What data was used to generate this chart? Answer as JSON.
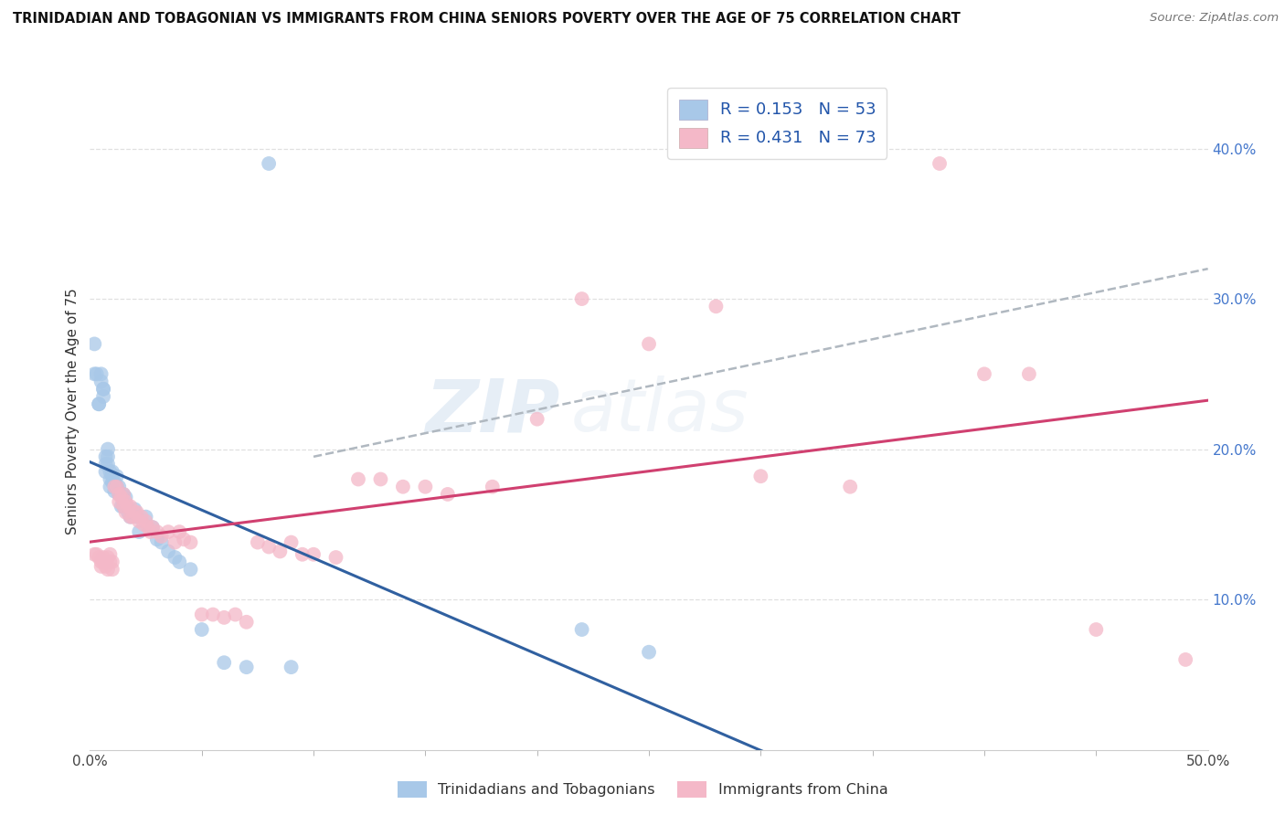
{
  "title": "TRINIDADIAN AND TOBAGONIAN VS IMMIGRANTS FROM CHINA SENIORS POVERTY OVER THE AGE OF 75 CORRELATION CHART",
  "source": "Source: ZipAtlas.com",
  "ylabel": "Seniors Poverty Over the Age of 75",
  "xlim": [
    0,
    0.5
  ],
  "ylim": [
    0,
    0.45
  ],
  "xtick_vals": [
    0.0,
    0.5
  ],
  "xticklabels": [
    "0.0%",
    "50.0%"
  ],
  "yticks_right": [
    0.1,
    0.2,
    0.3,
    0.4
  ],
  "yticklabels_right": [
    "10.0%",
    "20.0%",
    "30.0%",
    "40.0%"
  ],
  "legend_R1": "R = 0.153",
  "legend_N1": "N = 53",
  "legend_R2": "R = 0.431",
  "legend_N2": "N = 73",
  "color_blue": "#a8c8e8",
  "color_pink": "#f4b8c8",
  "color_blue_line": "#3060a0",
  "color_pink_line": "#d04070",
  "color_dashed_line": "#b0b8c0",
  "background_color": "#ffffff",
  "grid_color": "#e0e0e0",
  "blue_x": [
    0.002,
    0.002,
    0.003,
    0.004,
    0.004,
    0.005,
    0.005,
    0.006,
    0.006,
    0.006,
    0.007,
    0.007,
    0.007,
    0.008,
    0.008,
    0.008,
    0.009,
    0.009,
    0.009,
    0.01,
    0.01,
    0.01,
    0.011,
    0.011,
    0.012,
    0.012,
    0.013,
    0.013,
    0.014,
    0.015,
    0.015,
    0.016,
    0.016,
    0.017,
    0.018,
    0.02,
    0.021,
    0.022,
    0.025,
    0.028,
    0.03,
    0.032,
    0.035,
    0.038,
    0.04,
    0.045,
    0.05,
    0.06,
    0.07,
    0.08,
    0.09,
    0.22,
    0.25
  ],
  "blue_y": [
    0.27,
    0.25,
    0.25,
    0.23,
    0.23,
    0.25,
    0.245,
    0.24,
    0.235,
    0.24,
    0.195,
    0.19,
    0.185,
    0.2,
    0.195,
    0.19,
    0.185,
    0.18,
    0.175,
    0.185,
    0.182,
    0.178,
    0.178,
    0.172,
    0.182,
    0.175,
    0.175,
    0.17,
    0.162,
    0.17,
    0.162,
    0.168,
    0.163,
    0.158,
    0.155,
    0.16,
    0.155,
    0.145,
    0.155,
    0.148,
    0.14,
    0.138,
    0.132,
    0.128,
    0.125,
    0.12,
    0.08,
    0.058,
    0.055,
    0.39,
    0.055,
    0.08,
    0.065
  ],
  "pink_x": [
    0.002,
    0.003,
    0.004,
    0.005,
    0.005,
    0.006,
    0.006,
    0.007,
    0.007,
    0.008,
    0.008,
    0.009,
    0.009,
    0.01,
    0.01,
    0.011,
    0.012,
    0.013,
    0.013,
    0.014,
    0.015,
    0.015,
    0.016,
    0.016,
    0.017,
    0.018,
    0.018,
    0.019,
    0.02,
    0.021,
    0.022,
    0.023,
    0.024,
    0.025,
    0.026,
    0.027,
    0.028,
    0.03,
    0.032,
    0.035,
    0.038,
    0.04,
    0.042,
    0.045,
    0.05,
    0.055,
    0.06,
    0.065,
    0.07,
    0.075,
    0.08,
    0.085,
    0.09,
    0.095,
    0.1,
    0.11,
    0.12,
    0.13,
    0.14,
    0.15,
    0.16,
    0.18,
    0.2,
    0.22,
    0.25,
    0.28,
    0.3,
    0.34,
    0.38,
    0.4,
    0.42,
    0.45,
    0.49
  ],
  "pink_y": [
    0.13,
    0.13,
    0.128,
    0.125,
    0.122,
    0.128,
    0.125,
    0.125,
    0.122,
    0.128,
    0.12,
    0.13,
    0.125,
    0.125,
    0.12,
    0.175,
    0.175,
    0.17,
    0.165,
    0.168,
    0.17,
    0.162,
    0.165,
    0.158,
    0.162,
    0.162,
    0.155,
    0.155,
    0.158,
    0.158,
    0.152,
    0.155,
    0.15,
    0.152,
    0.148,
    0.145,
    0.148,
    0.145,
    0.142,
    0.145,
    0.138,
    0.145,
    0.14,
    0.138,
    0.09,
    0.09,
    0.088,
    0.09,
    0.085,
    0.138,
    0.135,
    0.132,
    0.138,
    0.13,
    0.13,
    0.128,
    0.18,
    0.18,
    0.175,
    0.175,
    0.17,
    0.175,
    0.22,
    0.3,
    0.27,
    0.295,
    0.182,
    0.175,
    0.39,
    0.25,
    0.25,
    0.08,
    0.06
  ]
}
